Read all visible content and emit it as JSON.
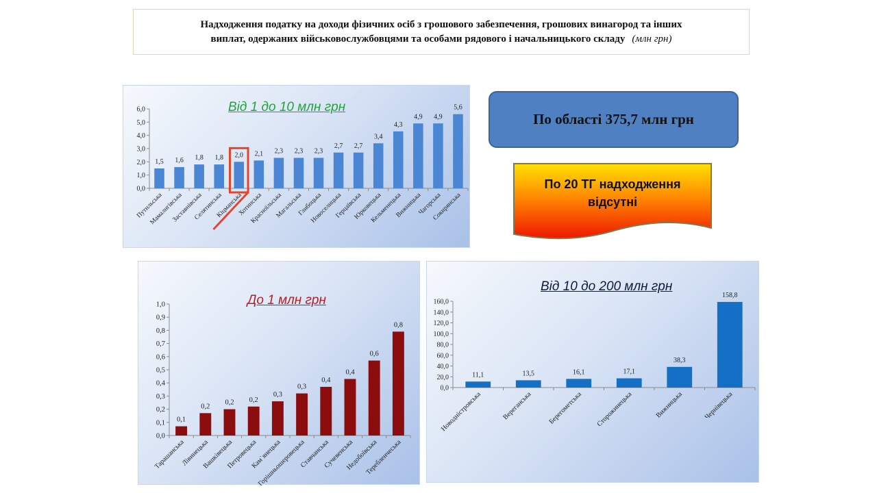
{
  "header": {
    "title_line1": "Надходження податку на доходи фізичних осіб з грошового забезпечення, грошових винагород та інших",
    "title_line2": "виплат, одержаних військовослужбовцями та особами рядового і начальницького складу",
    "unit": "(млн грн)"
  },
  "oblast_box": {
    "text": "По області 375,7 млн грн"
  },
  "tg_box": {
    "line1": "По 20 ТГ надходження",
    "line2": "відсутні"
  },
  "colors": {
    "bar_a": "#4a86d4",
    "bar_b": "#8c0d0d",
    "bar_c": "#1470c4",
    "highlight": "#e8442a"
  },
  "chart_data": [
    {
      "type": "bar",
      "title": "Від 1 до 10 млн грн",
      "categories": [
        "Путильська",
        "Мамалигівська",
        "Заставнівська",
        "Селятинська",
        "Кіцманська",
        "Хотинська",
        "Красноїльська",
        "Магальська",
        "Глибоцька",
        "Новоселицька",
        "Герцаївська",
        "Юрковецька",
        "Кельменецька",
        "Вижницька",
        "Чагорська",
        "Сокирянська"
      ],
      "values": [
        1.5,
        1.6,
        1.8,
        1.8,
        2.0,
        2.1,
        2.3,
        2.3,
        2.3,
        2.7,
        2.7,
        3.4,
        4.3,
        4.9,
        4.9,
        5.6
      ],
      "labels": [
        "1,5",
        "1,6",
        "1,8",
        "1,8",
        "2,0",
        "2,1",
        "2,3",
        "2,3",
        "2,3",
        "2,7",
        "2,7",
        "3,4",
        "4,3",
        "4,9",
        "4,9",
        "5,6"
      ],
      "ylim": [
        0,
        6
      ],
      "yticks": [
        "0,0",
        "1,0",
        "2,0",
        "3,0",
        "4,0",
        "5,0",
        "6,0"
      ],
      "highlight_index": 4,
      "grid": false
    },
    {
      "type": "bar",
      "title": "До 1 млн грн",
      "categories": [
        "Тарашанська",
        "Лівинецька",
        "Вашківецька",
        "Петровецька",
        "Кам`янецька",
        "Горішньошеровецька",
        "Ставчанська",
        "Сучевенська",
        "Недобоївська",
        "Теребленчеська"
      ],
      "values": [
        0.07,
        0.17,
        0.2,
        0.22,
        0.26,
        0.32,
        0.37,
        0.43,
        0.57,
        0.79
      ],
      "labels": [
        "0,1",
        "0,2",
        "0,2",
        "0,2",
        "0,3",
        "0,3",
        "0,4",
        "0,4",
        "0,6",
        "0,8"
      ],
      "ylim": [
        0,
        1
      ],
      "yticks": [
        "0,0",
        "0,1",
        "0,2",
        "0,3",
        "0,4",
        "0,5",
        "0,6",
        "0,7",
        "0,8",
        "0,9",
        "1,0"
      ],
      "grid": false
    },
    {
      "type": "bar",
      "title": "Від 10 до 200 млн грн",
      "categories": [
        "Новодністровська",
        "Вереганська",
        "Берегометська",
        "Сторожинецька",
        "Вижницька",
        "Чернівецька"
      ],
      "values": [
        11.1,
        13.5,
        16.1,
        17.1,
        38.3,
        158.8
      ],
      "labels": [
        "11,1",
        "13,5",
        "16,1",
        "17,1",
        "38,3",
        "158,8"
      ],
      "ylim": [
        0,
        160
      ],
      "yticks": [
        "0,0",
        "20,0",
        "40,0",
        "60,0",
        "80,0",
        "100,0",
        "120,0",
        "140,0",
        "160,0"
      ],
      "grid": false
    }
  ]
}
